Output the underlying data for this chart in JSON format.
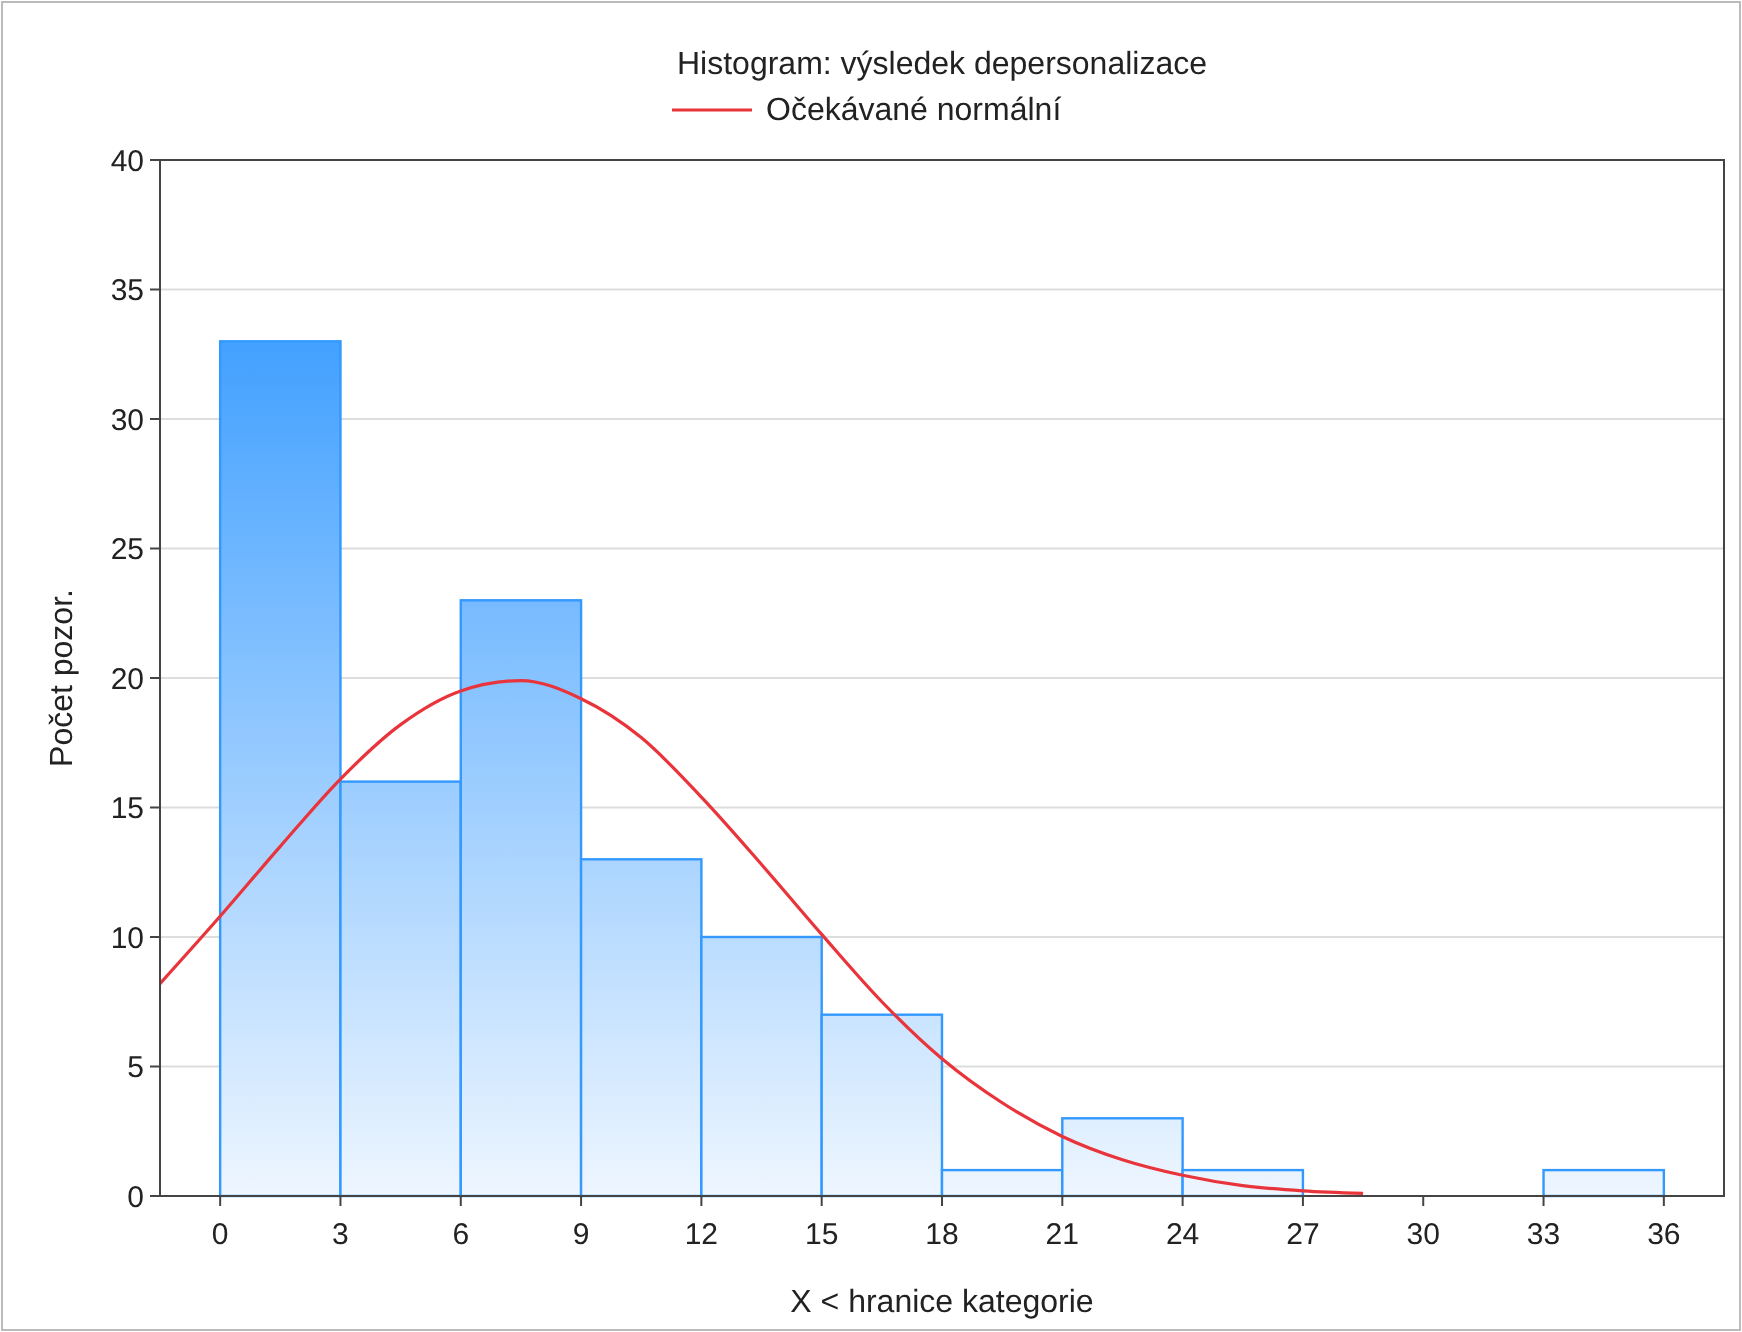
{
  "chart_data": {
    "type": "histogram",
    "title": "Histogram: výsledek depersonalizace",
    "xlabel": "X < hranice kategorie",
    "ylabel": "Počet pozor.",
    "bins": [
      0,
      3,
      6,
      9,
      12,
      15,
      18,
      21,
      24,
      27,
      30,
      33,
      36
    ],
    "values": [
      33,
      16,
      23,
      13,
      10,
      7,
      1,
      3,
      1,
      0,
      0,
      1
    ],
    "color": "#3399ff",
    "xlim": [
      -1.5,
      37.5
    ],
    "xticks": [
      0,
      3,
      6,
      9,
      12,
      15,
      18,
      21,
      24,
      27,
      30,
      33,
      36
    ],
    "ylim": [
      0,
      40
    ],
    "yticks": [
      0,
      5,
      10,
      15,
      20,
      25,
      30,
      35,
      40
    ],
    "grid": "y",
    "legend": "top",
    "series": [
      {
        "type": "line",
        "name": "Očekávané normální",
        "color": "#e8343a",
        "x": [
          -1.5,
          0,
          1.5,
          3,
          4.5,
          6,
          7.5,
          9,
          10.5,
          12,
          13.5,
          15,
          16.5,
          18,
          19.5,
          21,
          22.5,
          24,
          25.5,
          27,
          28.5
        ],
        "values": [
          8.2,
          10.8,
          13.5,
          16.1,
          18.2,
          19.5,
          19.9,
          19.2,
          17.7,
          15.4,
          12.8,
          10.1,
          7.5,
          5.3,
          3.6,
          2.3,
          1.4,
          0.8,
          0.4,
          0.2,
          0.1
        ]
      }
    ]
  }
}
